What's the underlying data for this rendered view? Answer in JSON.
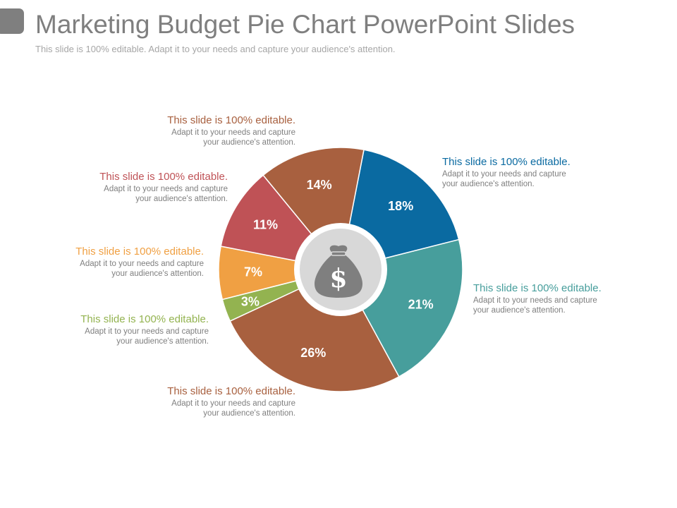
{
  "slide": {
    "title": "Marketing Budget Pie Chart PowerPoint Slides",
    "subtitle": "This slide is 100% editable. Adapt it to your needs and capture your audience's attention."
  },
  "chart_data": {
    "type": "pie",
    "categories": [
      "",
      "",
      "",
      "",
      "",
      "",
      ""
    ],
    "values": [
      18,
      21,
      26,
      3,
      7,
      11,
      14
    ],
    "labels": [
      "18%",
      "21%",
      "26%",
      "3%",
      "7%",
      "11%",
      "14%"
    ],
    "colors": [
      "#0a6aa1",
      "#479e9c",
      "#a8603f",
      "#93b350",
      "#f0a043",
      "#bf5256",
      "#a8603f"
    ],
    "title": "",
    "center_icon": "money-bag-dollar-icon",
    "legend": "none"
  },
  "callouts": [
    {
      "heading": "This slide is 100% editable.",
      "line1": "Adapt it to your needs and capture",
      "line2": "your audience's attention.",
      "color": "#0a6aa1"
    },
    {
      "heading": "This slide is 100% editable.",
      "line1": "Adapt it to your needs and capture",
      "line2": "your audience's attention.",
      "color": "#479e9c"
    },
    {
      "heading": "This slide is 100% editable.",
      "line1": "Adapt it to your needs and capture",
      "line2": "your audience's attention.",
      "color": "#a8603f"
    },
    {
      "heading": "This slide is 100% editable.",
      "line1": "Adapt it to your needs and capture",
      "line2": "your audience's attention.",
      "color": "#93b350"
    },
    {
      "heading": "This slide is 100% editable.",
      "line1": "Adapt it to your needs and capture",
      "line2": "your audience's attention.",
      "color": "#f0a043"
    },
    {
      "heading": "This slide is 100% editable.",
      "line1": "Adapt it to your needs and capture",
      "line2": "your audience's attention.",
      "color": "#bf5256"
    },
    {
      "heading": "This slide is 100% editable.",
      "line1": "Adapt it to your needs and capture",
      "line2": "your audience's attention.",
      "color": "#a8603f"
    }
  ]
}
